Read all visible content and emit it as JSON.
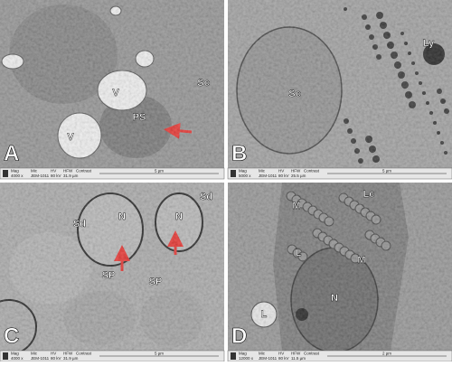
{
  "info_headers": [
    "Mag",
    "Mic",
    "HV",
    "HFW",
    "Contrast"
  ],
  "panels": [
    {
      "letter": "A",
      "labels": [
        "V",
        "V",
        "PS",
        "Sc"
      ],
      "info": [
        "4000 x",
        "JEM-1011",
        "80 kV",
        "31.9 µm",
        ""
      ],
      "scale": "5 µm"
    },
    {
      "letter": "B",
      "labels": [
        "Sc",
        "Ly"
      ],
      "info": [
        "5000 x",
        "JEM-1011",
        "80 kV",
        "25.5 µm",
        ""
      ],
      "scale": "5 µm"
    },
    {
      "letter": "C",
      "labels": [
        "Sd",
        "N",
        "N",
        "Sd",
        "SP",
        "SP"
      ],
      "info": [
        "4000 x",
        "JEM-1011",
        "80 kV",
        "31.9 µm",
        ""
      ],
      "scale": "5 µm"
    },
    {
      "letter": "D",
      "labels": [
        "Lc",
        "M",
        "M",
        "L",
        "N",
        "L"
      ],
      "info": [
        "12000 x",
        "JEM-1011",
        "80 kV",
        "11.5 µm",
        ""
      ],
      "scale": "2 µm"
    }
  ]
}
